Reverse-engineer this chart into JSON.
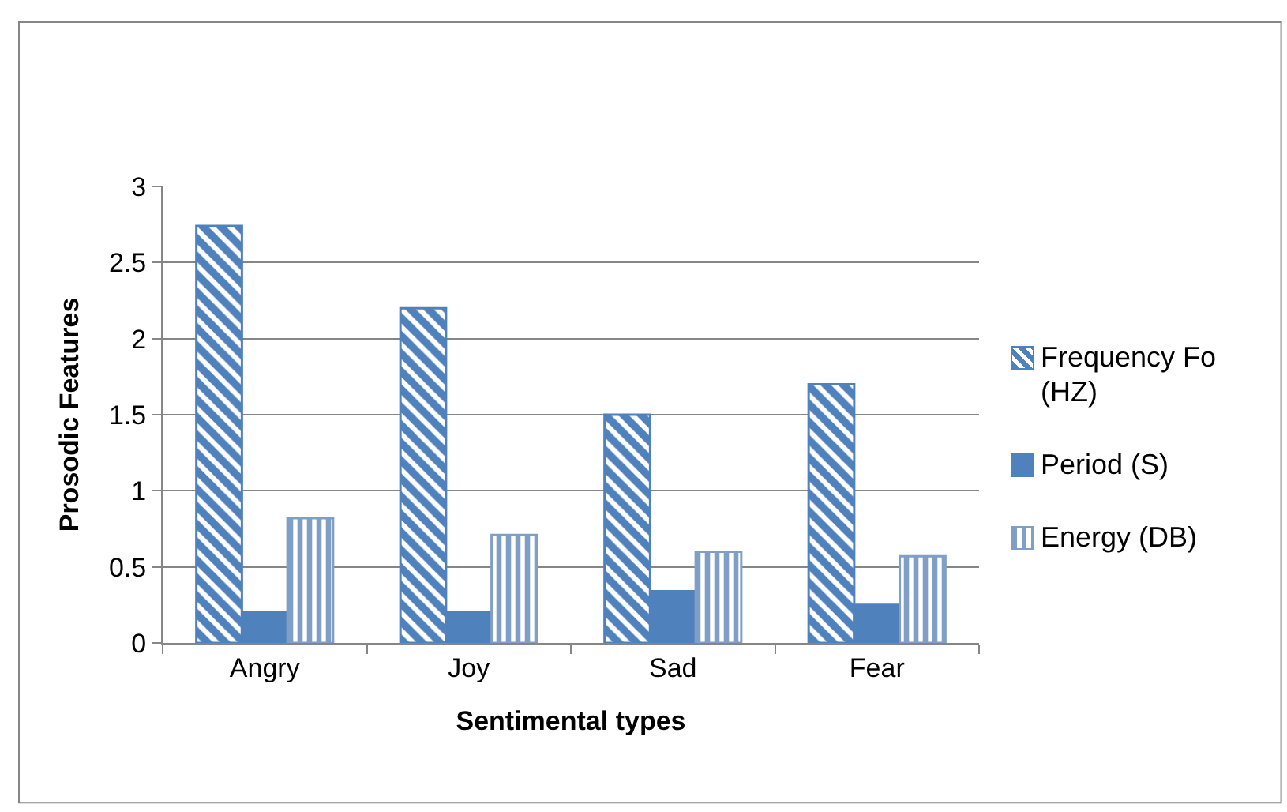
{
  "chart_data": {
    "type": "bar",
    "xlabel": "Sentimental types",
    "ylabel": "Prosodic Features",
    "categories": [
      "Angry",
      "Joy",
      "Sad",
      "Fear"
    ],
    "series": [
      {
        "name": "Frequency Fo (HZ)",
        "color": "#4f81bd",
        "values": [
          2.74,
          2.2,
          1.5,
          1.7
        ]
      },
      {
        "name": "Period (S)",
        "color": "#4f81bd",
        "values": [
          0.2,
          0.2,
          0.34,
          0.25
        ]
      },
      {
        "name": "Energy (DB)",
        "color": "#7f9fc7",
        "values": [
          0.82,
          0.71,
          0.6,
          0.57
        ]
      }
    ],
    "ylim": [
      0,
      3
    ],
    "yticks": [
      0,
      0.5,
      1,
      1.5,
      2,
      2.5,
      3
    ],
    "grid": "y",
    "legend": "right"
  }
}
